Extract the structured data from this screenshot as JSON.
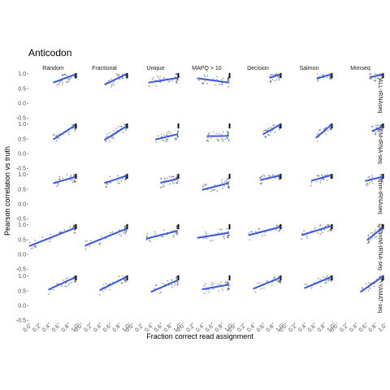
{
  "chart_data": {
    "type": "scatter",
    "title": "Anticodon",
    "xlabel": "Fraction correct read assignment",
    "ylabel": "Pearson correlation vs truth",
    "xlim": [
      0,
      1
    ],
    "ylim": [
      -0.55,
      1.05
    ],
    "x_ticks": [
      "0.0",
      "0.2",
      "0.4",
      "0.6",
      "0.8",
      "1.0"
    ],
    "y_ticks": [
      "-0.5",
      "0.0",
      "0.5",
      "1.0"
    ],
    "grid": false,
    "columns": [
      "Random",
      "Fractional",
      "Unique",
      "MAPQ > 10",
      "Decision",
      "Salmon",
      "Mimseq"
    ],
    "rows": [
      "ALL-tRNAseq",
      "DM-tRNA-seq",
      "mim-tRNAseq",
      "QuantM-tRNA-seq",
      "YAMAT-seq"
    ],
    "row_ranges": [
      [
        [
          0.5,
          0.96
        ],
        [
          0.5,
          0.96
        ],
        [
          0.35,
          0.96
        ],
        [
          0.3,
          0.96
        ],
        [
          0.74,
          0.97
        ],
        [
          0.66,
          0.97
        ],
        [
          0.7,
          0.97
        ]
      ],
      [
        [
          0.5,
          0.96
        ],
        [
          0.5,
          0.96
        ],
        [
          0.5,
          0.96
        ],
        [
          0.5,
          0.96
        ],
        [
          0.6,
          0.97
        ],
        [
          0.64,
          0.97
        ],
        [
          0.74,
          0.97
        ]
      ],
      [
        [
          0.5,
          0.96
        ],
        [
          0.5,
          0.96
        ],
        [
          0.6,
          0.96
        ],
        [
          0.4,
          0.96
        ],
        [
          0.54,
          0.97
        ],
        [
          0.54,
          0.97
        ],
        [
          0.6,
          0.97
        ]
      ],
      [
        [
          0.0,
          0.96
        ],
        [
          0.1,
          0.96
        ],
        [
          0.3,
          0.96
        ],
        [
          0.3,
          0.96
        ],
        [
          0.3,
          0.97
        ],
        [
          0.34,
          0.97
        ],
        [
          0.64,
          0.97
        ]
      ],
      [
        [
          0.4,
          0.96
        ],
        [
          0.4,
          0.96
        ],
        [
          0.4,
          0.96
        ],
        [
          0.4,
          0.96
        ],
        [
          0.4,
          0.97
        ],
        [
          0.4,
          0.97
        ],
        [
          0.5,
          0.97
        ]
      ]
    ],
    "fit_lines": [
      [
        [
          0.5,
          0.7,
          0.96,
          0.98
        ],
        [
          0.5,
          0.63,
          0.96,
          0.99
        ],
        [
          0.35,
          0.7,
          0.96,
          0.86
        ],
        [
          0.3,
          0.85,
          0.96,
          0.7
        ],
        [
          0.74,
          0.86,
          0.97,
          0.98
        ],
        [
          0.66,
          0.84,
          0.97,
          0.99
        ],
        [
          0.7,
          0.88,
          0.97,
          0.98
        ]
      ],
      [
        [
          0.5,
          0.48,
          0.96,
          0.96
        ],
        [
          0.5,
          0.46,
          0.96,
          0.93
        ],
        [
          0.5,
          0.48,
          0.96,
          0.66
        ],
        [
          0.5,
          0.59,
          0.96,
          0.6
        ],
        [
          0.6,
          0.65,
          0.97,
          0.99
        ],
        [
          0.64,
          0.53,
          0.97,
          0.99
        ],
        [
          0.74,
          0.76,
          0.97,
          0.92
        ]
      ],
      [
        [
          0.5,
          0.7,
          0.96,
          0.92
        ],
        [
          0.5,
          0.71,
          0.96,
          0.96
        ],
        [
          0.6,
          0.72,
          0.96,
          0.85
        ],
        [
          0.4,
          0.48,
          0.96,
          0.71
        ],
        [
          0.54,
          0.81,
          0.97,
          0.97
        ],
        [
          0.54,
          0.79,
          0.97,
          0.98
        ],
        [
          0.6,
          0.78,
          0.97,
          0.93
        ]
      ],
      [
        [
          0.0,
          0.28,
          0.96,
          0.9
        ],
        [
          0.1,
          0.3,
          0.96,
          0.87
        ],
        [
          0.3,
          0.53,
          0.96,
          0.8
        ],
        [
          0.3,
          0.56,
          0.96,
          0.73
        ],
        [
          0.3,
          0.65,
          0.97,
          0.93
        ],
        [
          0.34,
          0.65,
          0.97,
          0.97
        ],
        [
          0.64,
          0.48,
          0.97,
          0.92
        ]
      ],
      [
        [
          0.4,
          0.54,
          0.96,
          0.96
        ],
        [
          0.4,
          0.52,
          0.96,
          0.97
        ],
        [
          0.4,
          0.46,
          0.96,
          0.86
        ],
        [
          0.4,
          0.55,
          0.96,
          0.71
        ],
        [
          0.4,
          0.57,
          0.97,
          0.95
        ],
        [
          0.4,
          0.59,
          0.97,
          0.98
        ],
        [
          0.5,
          0.46,
          0.97,
          0.99
        ]
      ]
    ],
    "point_color": "#4d4d4d",
    "fit_color": "#3558e6",
    "background": "#ffffff"
  }
}
